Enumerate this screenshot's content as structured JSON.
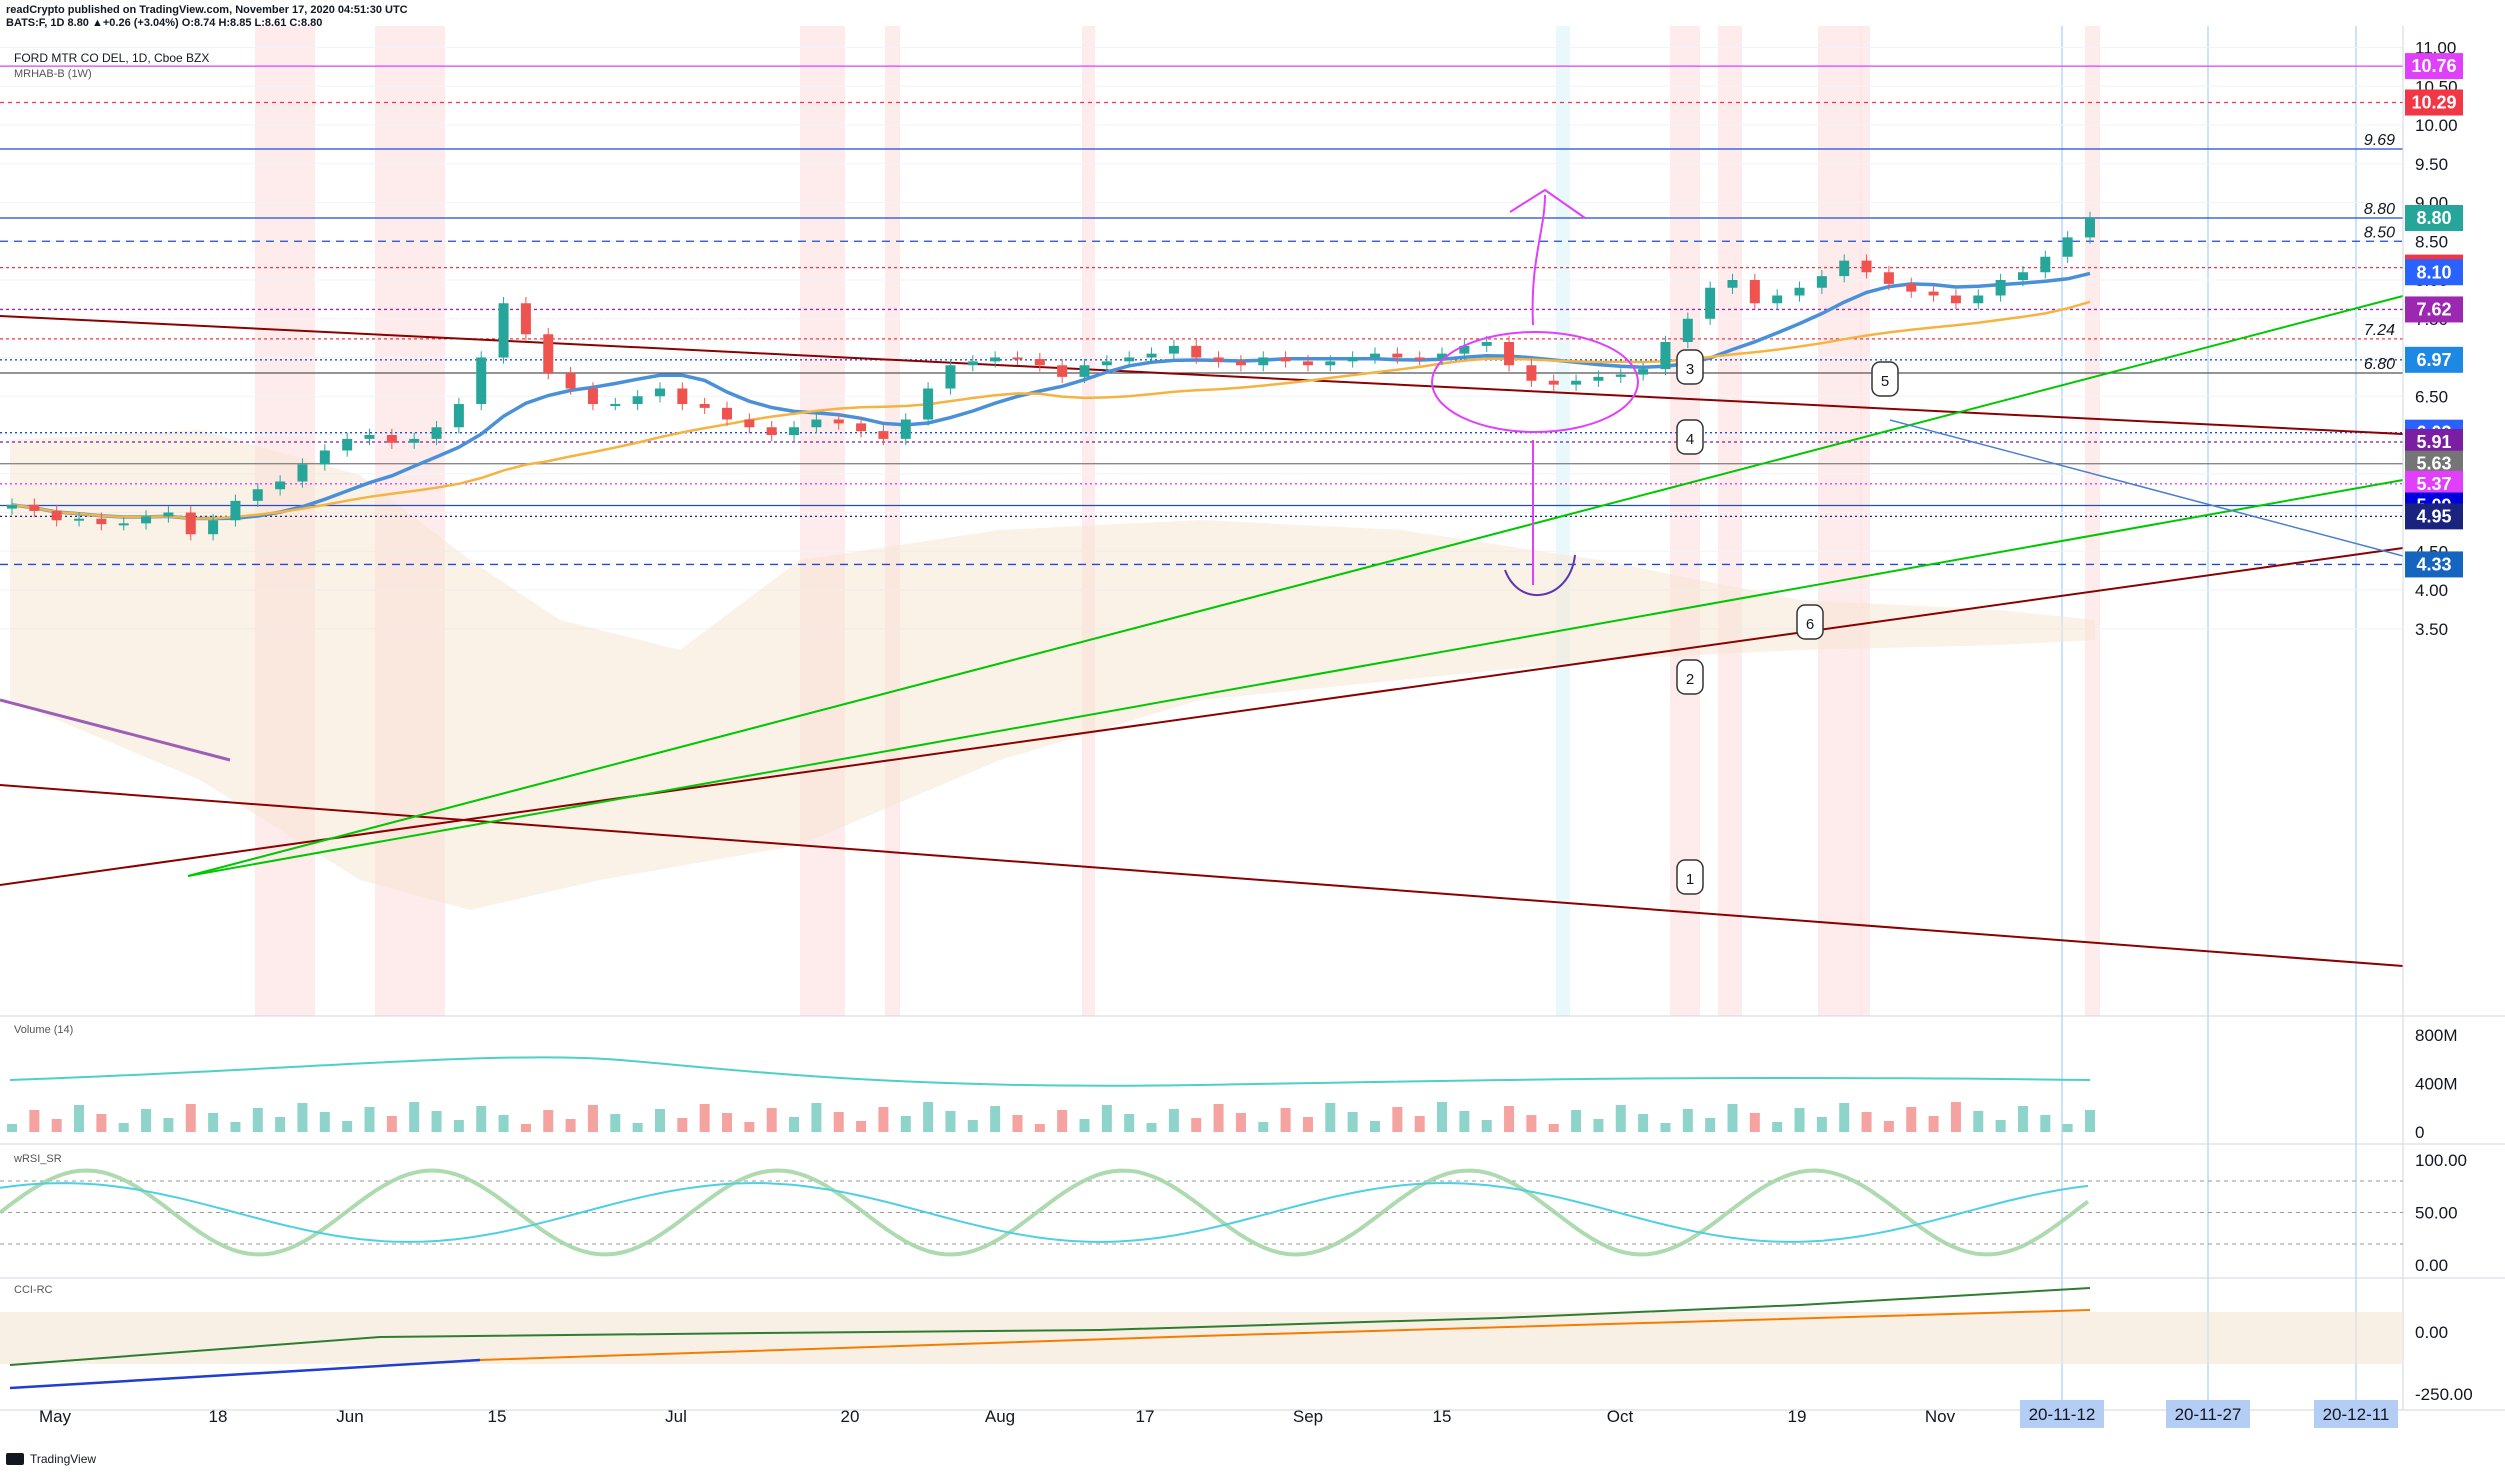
{
  "header": {
    "author_line": "readCrypto published on TradingView.com, November 17, 2020 04:51:30 UTC",
    "quote_line": "BATS:F, 1D  8.80  ▲+0.26 (+3.04%)  O:8.74  H:8.85  L:8.61  C:8.80"
  },
  "symbol": {
    "title": "FORD MTR CO DEL, 1D, Cboe BZX",
    "indicator": "MRHAB-B (1W)"
  },
  "footer": {
    "brand": "TradingView"
  },
  "colors": {
    "bull": "#26a69a",
    "bear": "#ef5350",
    "pink_line": "#e040fb",
    "blue_line": "#1e4bd2",
    "dark_red": "#8b0000",
    "green": "#00c800",
    "ma_blue": "#4a90d9",
    "ma_orange": "#f5b342",
    "red_tag": "#f23645"
  },
  "chart_data": [
    {
      "type": "line",
      "title": "FORD MTR CO DEL, 1D, Cboe BZX",
      "xlabel": "",
      "ylabel": "",
      "x_ticks": [
        "May",
        "18",
        "Jun",
        "15",
        "Jul",
        "20",
        "Aug",
        "17",
        "Sep",
        "15",
        "Oct",
        "19",
        "Nov",
        "20-11-12",
        "20-11-27",
        "20-12-11"
      ],
      "y_ticks": [
        "11.00",
        "10.50",
        "10.00",
        "9.50",
        "9.00",
        "8.50",
        "8.00",
        "7.50",
        "7.00",
        "6.50",
        "6.00",
        "5.50",
        "5.00",
        "4.50",
        "4.00",
        "3.50"
      ],
      "ylim": [
        3.4,
        11.2
      ],
      "grid": true,
      "series": [
        {
          "values": [
            5.1,
            5.02,
            4.9,
            4.92,
            4.85,
            4.86,
            4.95,
            5.0,
            4.72,
            4.9,
            5.15,
            5.3,
            5.4,
            5.62,
            5.8,
            5.95,
            6.0,
            5.9,
            5.95,
            6.1,
            6.4,
            7.0,
            7.7,
            7.3,
            6.8,
            6.6,
            6.4,
            6.4,
            6.5,
            6.6,
            6.4,
            6.35,
            6.2,
            6.1,
            6.0,
            6.1,
            6.2,
            6.15,
            6.05,
            5.95,
            6.2,
            6.6,
            6.9,
            6.95,
            7.0,
            6.98,
            6.9,
            6.75,
            6.9,
            6.95,
            7.0,
            7.05,
            7.15,
            7.0,
            6.95,
            6.9,
            7.0,
            6.95,
            6.9,
            6.95,
            7.0,
            7.05,
            7.0,
            6.98,
            7.05,
            7.15,
            7.2,
            6.9,
            6.7,
            6.65,
            6.7,
            6.75,
            6.78,
            6.85,
            7.2,
            7.5,
            7.9,
            8.0,
            7.7,
            7.8,
            7.9,
            8.05,
            8.25,
            8.1,
            7.95,
            7.85,
            7.8,
            7.7,
            7.8,
            8.0,
            8.1,
            8.3,
            8.55,
            8.8
          ]
        }
      ],
      "horizontal_levels": [
        10.76,
        10.29,
        9.69,
        8.8,
        8.5,
        8.16,
        8.1,
        7.62,
        7.24,
        6.97,
        6.8,
        6.03,
        5.91,
        5.63,
        5.37,
        5.09,
        4.95,
        4.33
      ],
      "price_tags": [
        {
          "value": "10.76",
          "color": "#e040fb"
        },
        {
          "value": "10.29",
          "color": "#f23645"
        },
        {
          "value": "8.80",
          "color": "#26a69a"
        },
        {
          "value": "8.16",
          "color": "#f23645"
        },
        {
          "value": "8.10",
          "color": "#2962ff"
        },
        {
          "value": "7.62",
          "color": "#9c27b0"
        },
        {
          "value": "6.97",
          "color": "#1e88e5"
        },
        {
          "value": "6.03",
          "color": "#2962ff"
        },
        {
          "value": "5.91",
          "color": "#7b1fa2"
        },
        {
          "value": "5.63",
          "color": "#757575"
        },
        {
          "value": "5.37",
          "color": "#e040fb"
        },
        {
          "value": "5.09",
          "color": "#0000dd"
        },
        {
          "value": "4.95",
          "color": "#1a237e"
        },
        {
          "value": "4.33",
          "color": "#1565c0"
        }
      ],
      "line_labels": [
        "9.69",
        "8.80",
        "8.50",
        "7.24",
        "6.80"
      ],
      "annotations": [
        "1",
        "2",
        "3",
        "4",
        "5",
        "6"
      ]
    },
    {
      "type": "area",
      "title": "Volume (14)",
      "y_ticks": [
        "800M",
        "400M",
        "0"
      ]
    },
    {
      "type": "line",
      "title": "wRSI_SR",
      "y_ticks": [
        "100.00",
        "50.00",
        "0.00"
      ]
    },
    {
      "type": "line",
      "title": "CCI-RC",
      "y_ticks": [
        "0.00",
        "-250.00"
      ]
    }
  ]
}
